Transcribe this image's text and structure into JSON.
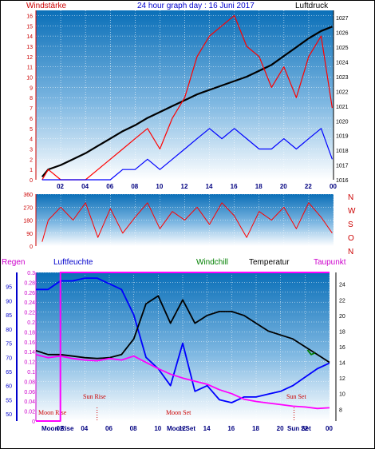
{
  "chart_data": [
    {
      "type": "line",
      "title": "24 hour graph day : 16 Juni 2017",
      "left_label": "Windstärke",
      "right_label": "Luftdruck",
      "x_ticks": [
        "02",
        "04",
        "06",
        "08",
        "10",
        "12",
        "14",
        "16",
        "18",
        "20",
        "22",
        "00"
      ],
      "y_left_ticks": [
        "0",
        "1",
        "2",
        "3",
        "4",
        "5",
        "6",
        "7",
        "8",
        "9",
        "10",
        "11",
        "12",
        "13",
        "14",
        "15",
        "16"
      ],
      "y_right_ticks": [
        "1016",
        "1017",
        "1018",
        "1019",
        "1020",
        "1021",
        "1022",
        "1023",
        "1024",
        "1025",
        "1026",
        "1027"
      ],
      "ylim_left": [
        0,
        16.5
      ],
      "ylim_right": [
        1016,
        1027.5
      ],
      "series": [
        {
          "name": "Luftdruck",
          "axis": "right",
          "color": "#000000",
          "x": [
            0.5,
            1,
            2,
            3,
            4,
            5,
            6,
            7,
            8,
            9,
            10,
            11,
            12,
            13,
            14,
            15,
            16,
            17,
            18,
            19,
            20,
            21,
            22,
            23,
            23.9
          ],
          "values": [
            1016.2,
            1016.7,
            1017.0,
            1017.4,
            1017.8,
            1018.3,
            1018.8,
            1019.3,
            1019.7,
            1020.2,
            1020.6,
            1021.0,
            1021.4,
            1021.8,
            1022.1,
            1022.4,
            1022.7,
            1023.0,
            1023.4,
            1023.8,
            1024.4,
            1025.0,
            1025.6,
            1026.1,
            1026.4
          ]
        },
        {
          "name": "Wind Gust",
          "axis": "left",
          "color": "#ff0000",
          "x": [
            0.5,
            1,
            2,
            3,
            4,
            5,
            6,
            7,
            8,
            9,
            10,
            11,
            12,
            13,
            14,
            15,
            16,
            17,
            18,
            19,
            20,
            21,
            22,
            23,
            23.9
          ],
          "values": [
            0,
            1,
            0,
            0,
            0,
            1,
            2,
            3,
            4,
            5,
            3,
            6,
            8,
            12,
            14,
            15,
            16,
            13,
            12,
            9,
            11,
            8,
            12,
            14,
            7
          ]
        },
        {
          "name": "Wind Avg",
          "axis": "left",
          "color": "#0000ff",
          "x": [
            0.5,
            1,
            2,
            3,
            4,
            5,
            6,
            7,
            8,
            9,
            10,
            11,
            12,
            13,
            14,
            15,
            16,
            17,
            18,
            19,
            20,
            21,
            22,
            23,
            23.9
          ],
          "values": [
            0,
            0,
            0,
            0,
            0,
            0,
            0,
            1,
            1,
            2,
            1,
            2,
            3,
            4,
            5,
            4,
            5,
            4,
            3,
            3,
            4,
            3,
            4,
            5,
            2
          ]
        }
      ]
    },
    {
      "type": "line",
      "x_ticks": [],
      "y_left_ticks": [
        "0",
        "90",
        "180",
        "270",
        "360"
      ],
      "ylim": [
        0,
        360
      ],
      "compass": [
        "N",
        "W",
        "S",
        "O",
        "N"
      ],
      "series": [
        {
          "name": "Windrichtung",
          "color": "#ff0000",
          "x": [
            0.5,
            1,
            2,
            3,
            4,
            5,
            6,
            7,
            8,
            9,
            10,
            11,
            12,
            13,
            14,
            15,
            16,
            17,
            18,
            19,
            20,
            21,
            22,
            23,
            23.9
          ],
          "values": [
            30,
            180,
            270,
            180,
            300,
            60,
            260,
            90,
            200,
            300,
            120,
            240,
            180,
            270,
            150,
            300,
            210,
            60,
            240,
            180,
            270,
            120,
            300,
            200,
            90
          ]
        }
      ]
    },
    {
      "type": "line",
      "labels": {
        "regen": "Regen",
        "luftfeuchte": "Luftfeuchte",
        "windchill": "Windchill",
        "temperatur": "Temperatur",
        "taupunkt": "Taupunkt"
      },
      "x_ticks": [
        "02",
        "04",
        "06",
        "08",
        "10",
        "12",
        "14",
        "16",
        "18",
        "20",
        "22",
        "00"
      ],
      "y_regen_ticks": [
        "0",
        "0.02",
        "0.04",
        "0.06",
        "0.08",
        "0.1",
        "0.12",
        "0.14",
        "0.16",
        "0.18",
        "0.2",
        "0.22",
        "0.24",
        "0.26",
        "0.28",
        "0.3"
      ],
      "y_humidity_ticks": [
        "50",
        "55",
        "60",
        "65",
        "70",
        "75",
        "80",
        "85",
        "90",
        "95"
      ],
      "y_temp_ticks": [
        "8",
        "10",
        "12",
        "14",
        "16",
        "18",
        "20",
        "22",
        "24"
      ],
      "events": [
        "Moon Rise",
        "Sun Rise",
        "Moon Set",
        "Sun Set"
      ],
      "x_extra": [
        "Moon Rise",
        "Moon Set",
        "Sun Set",
        "Sun Rise"
      ],
      "series": [
        {
          "name": "Luftfeuchte",
          "axis": "humidity",
          "color": "#0000ff",
          "x": [
            0,
            1,
            2,
            3,
            4,
            5,
            6,
            7,
            8,
            9,
            10,
            11,
            12,
            13,
            14,
            15,
            16,
            17,
            18,
            19,
            20,
            21,
            22,
            23,
            24
          ],
          "values": [
            94,
            94,
            97,
            97,
            98,
            98,
            96,
            94,
            85,
            70,
            66,
            60,
            75,
            58,
            60,
            55,
            54,
            56,
            56,
            57,
            58,
            60,
            63,
            66,
            68
          ]
        },
        {
          "name": "Temperatur",
          "axis": "temp",
          "color": "#000000",
          "x": [
            0,
            1,
            2,
            3,
            4,
            5,
            6,
            7,
            8,
            9,
            10,
            11,
            12,
            13,
            14,
            15,
            16,
            17,
            18,
            19,
            20,
            21,
            22,
            23,
            24
          ],
          "values": [
            15.5,
            15.0,
            15.0,
            14.8,
            14.6,
            14.5,
            14.6,
            15.0,
            17,
            21.5,
            22.5,
            19,
            22,
            19,
            20,
            20.5,
            20.5,
            20,
            19,
            18,
            17.5,
            17,
            16,
            15,
            14
          ]
        },
        {
          "name": "Windchill",
          "axis": "temp",
          "color": "#008000",
          "x": [
            22.2,
            22.5,
            22.8
          ],
          "values": [
            15.6,
            15.0,
            15.2
          ]
        },
        {
          "name": "Taupunkt",
          "axis": "temp",
          "color": "#ff00ff",
          "x": [
            0,
            1,
            2,
            3,
            4,
            5,
            6,
            7,
            8,
            9,
            10,
            11,
            12,
            13,
            14,
            15,
            16,
            17,
            18,
            19,
            20,
            21,
            22,
            23,
            24
          ],
          "values": [
            15,
            14.6,
            14.8,
            14.5,
            14.3,
            14.2,
            14.5,
            14.3,
            14.8,
            14.0,
            13.2,
            12.5,
            12.0,
            11.6,
            11.2,
            10.5,
            10,
            9.3,
            9,
            8.8,
            8.6,
            8.4,
            8.3,
            8.1,
            8.2
          ]
        },
        {
          "name": "Regen",
          "axis": "regen",
          "color": "#ff00ff",
          "x": [
            0,
            2,
            2,
            24
          ],
          "values": [
            0,
            0,
            0.3,
            0.3
          ]
        }
      ]
    }
  ]
}
